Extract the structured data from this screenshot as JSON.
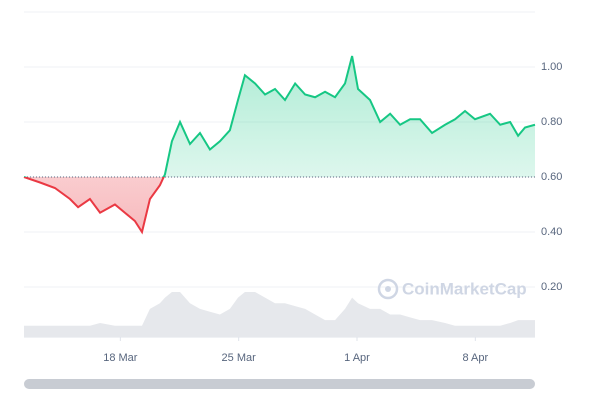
{
  "chart_data": {
    "type": "line",
    "x": [
      12.3,
      13.25,
      14.13,
      15.02,
      15.5,
      16.2,
      16.8,
      17.68,
      18.27,
      18.86,
      19.28,
      19.75,
      20.34,
      20.64,
      21.05,
      21.53,
      22.12,
      22.71,
      23.3,
      23.89,
      24.48,
      24.96,
      25.37,
      25.97,
      26.56,
      27.15,
      27.74,
      28.34,
      28.93,
      29.52,
      30.11,
      30.7,
      31.29,
      31.71,
      32.06,
      32.77,
      33.37,
      33.96,
      34.55,
      35.14,
      35.73,
      36.44,
      37.21,
      37.8,
      38.39,
      38.98,
      39.87,
      40.47,
      41.06,
      41.53,
      41.94,
      42.53
    ],
    "values": [
      0.6,
      0.58,
      0.56,
      0.52,
      0.49,
      0.52,
      0.47,
      0.5,
      0.47,
      0.44,
      0.4,
      0.52,
      0.57,
      0.61,
      0.73,
      0.8,
      0.72,
      0.76,
      0.7,
      0.73,
      0.77,
      0.88,
      0.97,
      0.94,
      0.9,
      0.92,
      0.88,
      0.94,
      0.9,
      0.89,
      0.91,
      0.89,
      0.94,
      1.04,
      0.92,
      0.88,
      0.8,
      0.83,
      0.79,
      0.81,
      0.81,
      0.76,
      0.79,
      0.81,
      0.84,
      0.81,
      0.83,
      0.79,
      0.8,
      0.75,
      0.78,
      0.79
    ],
    "volume": [
      2,
      2,
      2,
      2,
      2,
      2,
      2.5,
      2,
      2,
      2,
      2,
      5,
      6,
      7,
      8,
      8,
      6,
      5,
      4.5,
      4,
      5,
      7,
      8,
      8,
      7,
      6,
      6,
      5.5,
      5,
      4,
      3,
      3,
      5,
      7,
      6,
      5,
      5,
      4,
      4,
      3.5,
      3,
      3,
      2.5,
      2,
      2,
      2,
      2,
      2,
      2.5,
      3,
      3,
      3
    ],
    "baseline": 0.6,
    "color_up": "#16c784",
    "color_down": "#ea3943",
    "volume_color": "#e6e8ec",
    "xlim": [
      12.3,
      42.53
    ],
    "ylim": [
      0,
      1.2
    ],
    "xticks": [
      {
        "value": 18,
        "label": "18 Mar"
      },
      {
        "value": 25,
        "label": "25 Mar"
      },
      {
        "value": 32,
        "label": "1 Apr"
      },
      {
        "value": 39,
        "label": "8 Apr"
      }
    ],
    "yticks": [
      {
        "value": 0.2,
        "label": "0.20"
      },
      {
        "value": 0.4,
        "label": "0.40"
      },
      {
        "value": 0.6,
        "label": "0.60"
      },
      {
        "value": 0.8,
        "label": "0.80"
      },
      {
        "value": 1.0,
        "label": "1.00"
      }
    ],
    "grid": true,
    "watermark": "CoinMarketCap"
  }
}
